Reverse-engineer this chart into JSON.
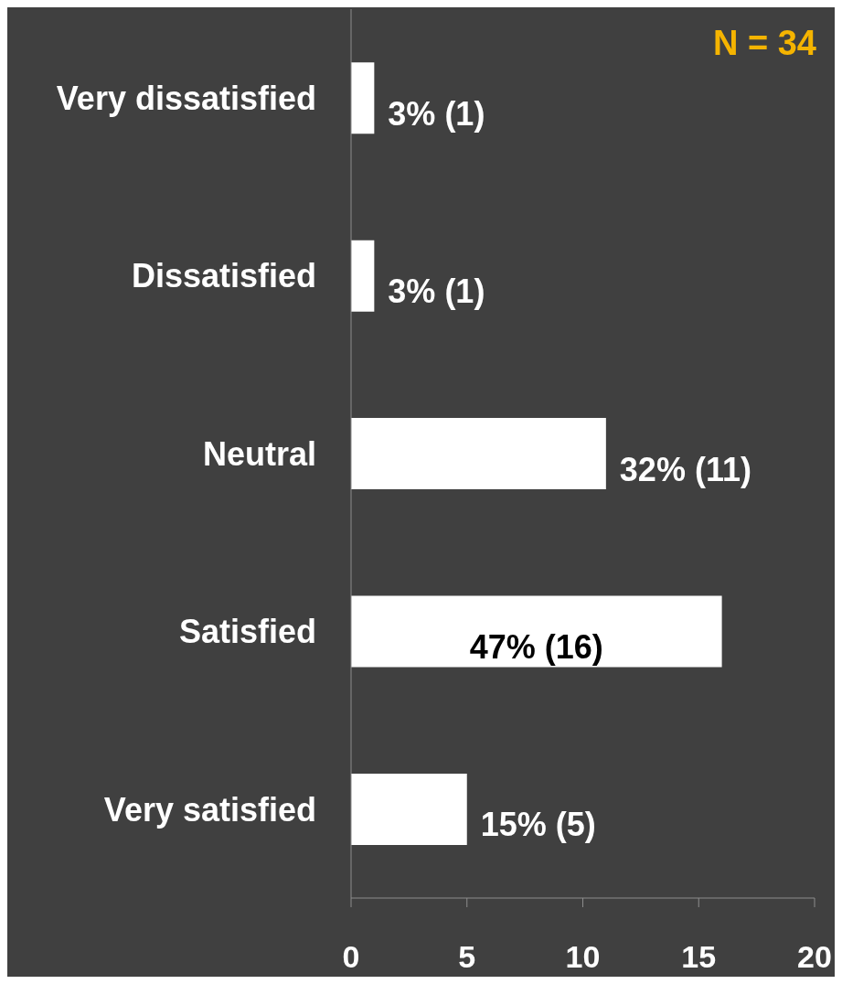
{
  "chart_data": {
    "type": "bar",
    "orientation": "horizontal",
    "categories": [
      "Very dissatisfied",
      "Dissatisfied",
      "Neutral",
      "Satisfied",
      "Very satisfied"
    ],
    "values": [
      1,
      1,
      11,
      16,
      5
    ],
    "colors": [
      "#ffffff",
      "#ffffff",
      "#ffffff",
      "#ffffff",
      "#ffffff"
    ],
    "value_labels": [
      "3% (1)",
      "3% (1)",
      "32% (11)",
      "47% (16)",
      "15% (5)"
    ],
    "xlim": [
      0,
      20
    ],
    "xticks": [
      0,
      5,
      10,
      15,
      20
    ],
    "annotations": [
      "N = 34"
    ]
  }
}
